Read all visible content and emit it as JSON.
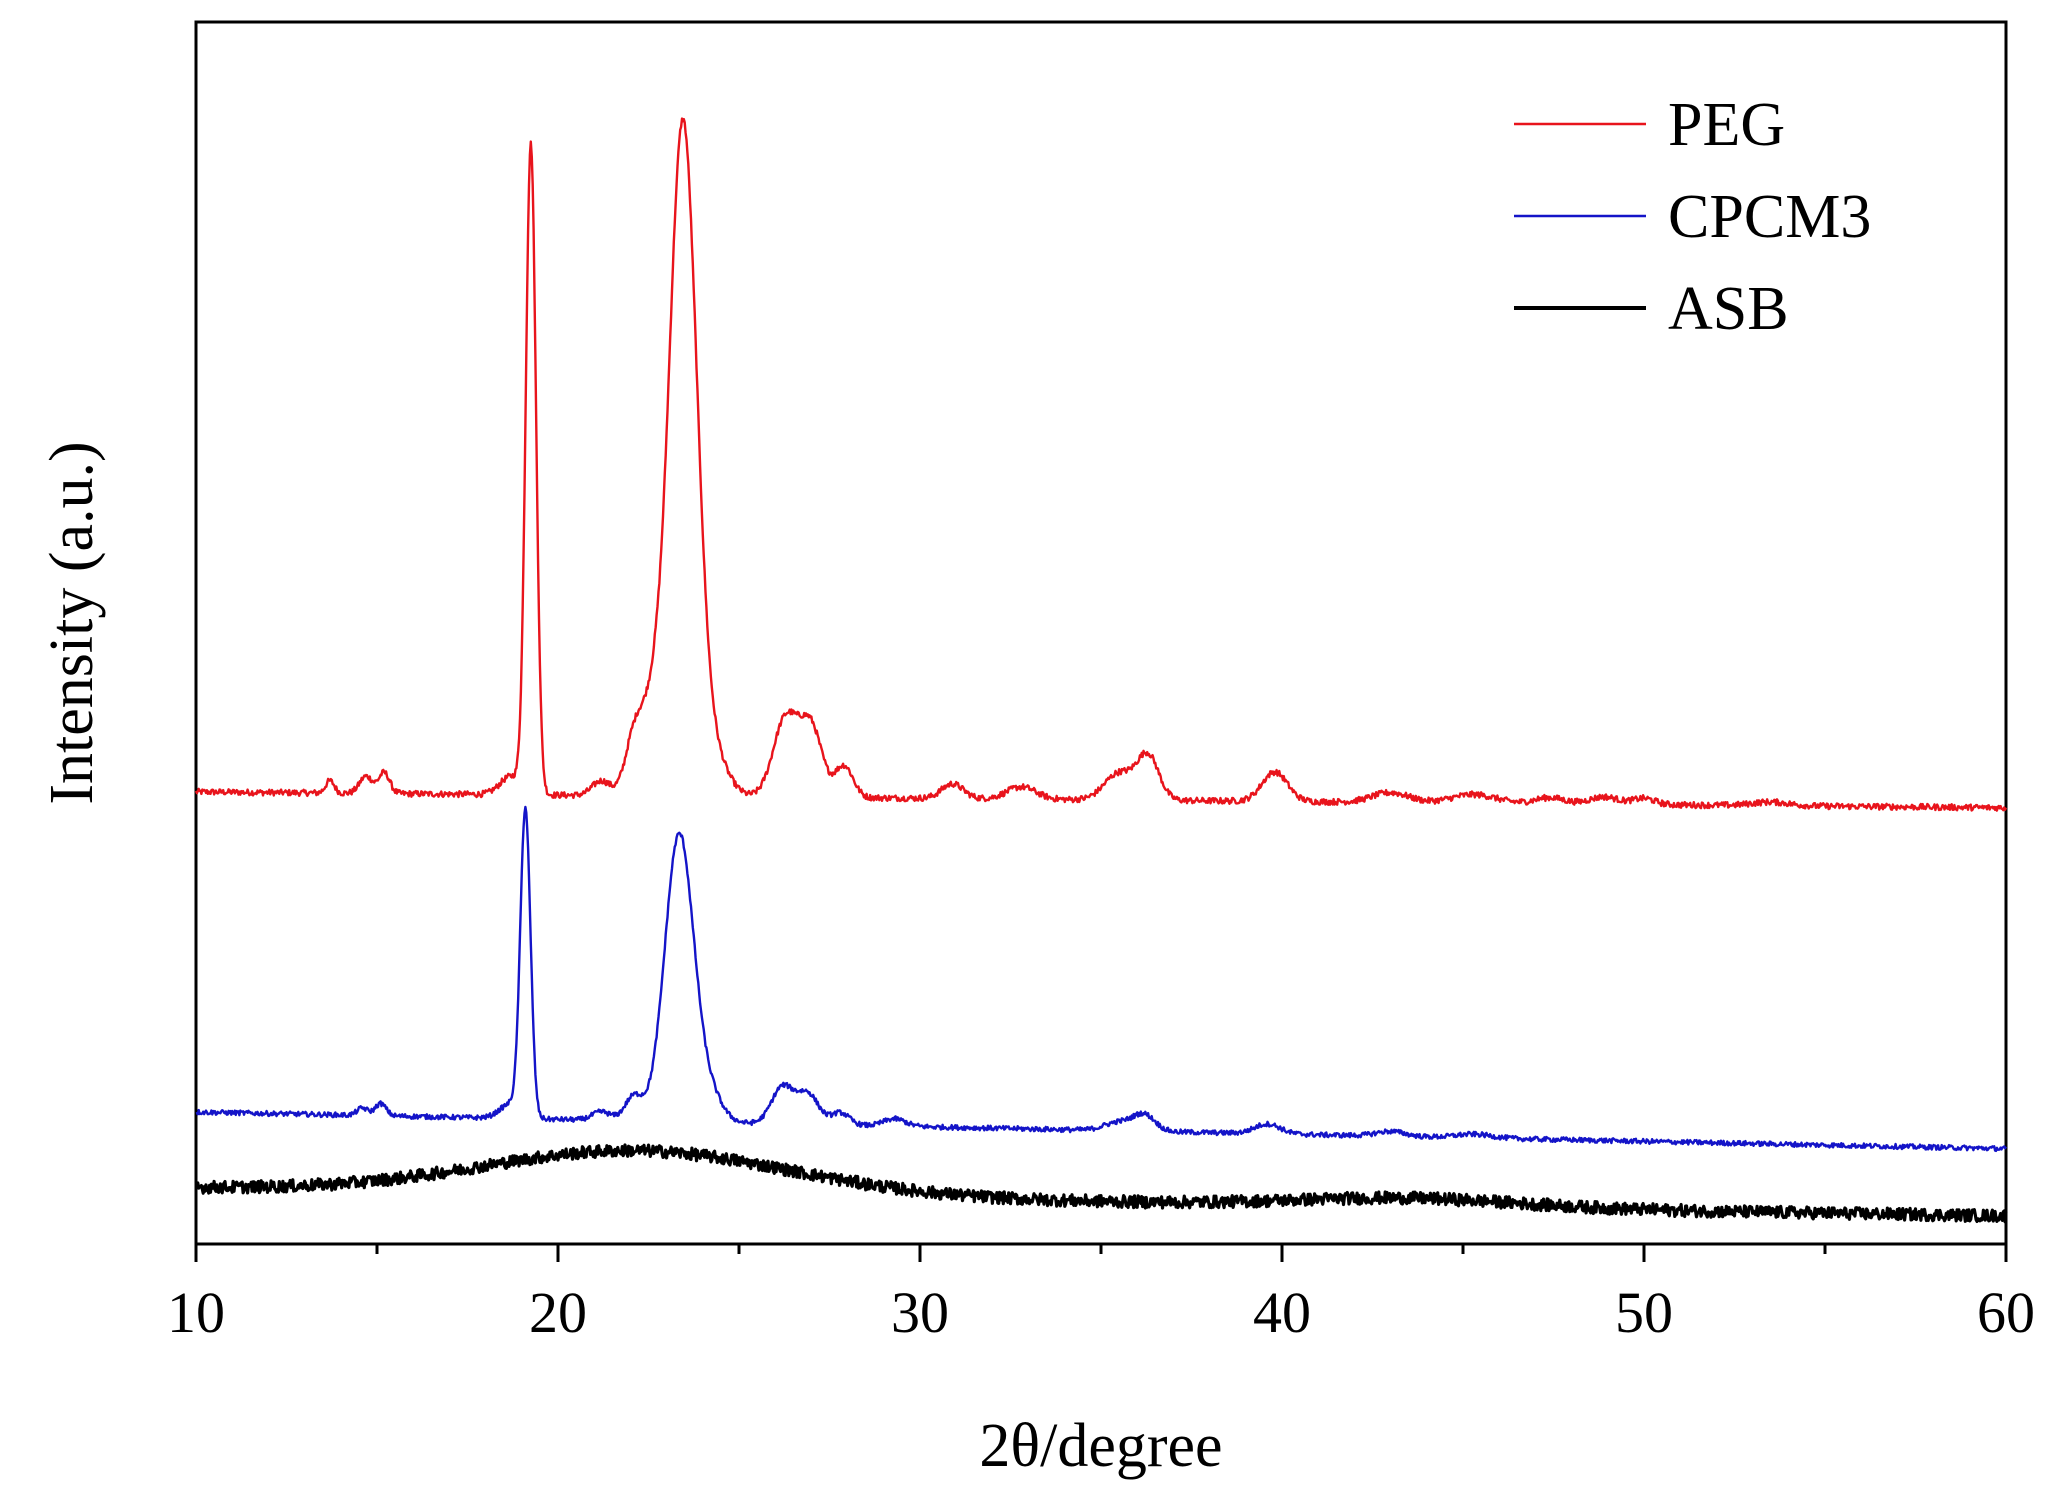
{
  "chart_data": {
    "type": "line",
    "title": "",
    "xlabel": "2θ/degree",
    "ylabel": "Intensity (a.u.)",
    "xlim": [
      10,
      60
    ],
    "ylim": [
      0,
      100
    ],
    "x_ticks": [
      10,
      20,
      30,
      40,
      50,
      60
    ],
    "y_ticks": [],
    "grid": false,
    "legend_position": "top-right",
    "series": [
      {
        "name": "PEG",
        "color": "#e8141c",
        "stroke": "thin",
        "baseline_start": 37.0,
        "baseline_end": 35.7,
        "noise": 0.25,
        "peaks": [
          [
            13.7,
            0.12,
            1.0
          ],
          [
            14.7,
            0.18,
            1.4
          ],
          [
            15.2,
            0.15,
            1.7
          ],
          [
            18.7,
            0.3,
            1.5
          ],
          [
            19.25,
            0.14,
            53.0
          ],
          [
            21.2,
            0.25,
            1.2
          ],
          [
            22.1,
            0.25,
            4.5
          ],
          [
            22.6,
            0.3,
            6.0
          ],
          [
            23.45,
            0.38,
            55.0
          ],
          [
            24.3,
            0.4,
            3.0
          ],
          [
            26.3,
            0.35,
            6.5
          ],
          [
            27.0,
            0.3,
            5.5
          ],
          [
            27.9,
            0.25,
            2.6
          ],
          [
            30.9,
            0.3,
            1.2
          ],
          [
            32.8,
            0.4,
            1.0
          ],
          [
            35.5,
            0.4,
            2.2
          ],
          [
            36.3,
            0.3,
            3.6
          ],
          [
            39.8,
            0.35,
            2.4
          ],
          [
            43.0,
            0.5,
            0.8
          ],
          [
            45.3,
            0.6,
            0.7
          ],
          [
            47.4,
            0.4,
            0.5
          ],
          [
            48.9,
            0.4,
            0.6
          ],
          [
            50.0,
            0.3,
            0.5
          ],
          [
            53.5,
            0.5,
            0.3
          ]
        ]
      },
      {
        "name": "CPCM3",
        "color": "#1414c8",
        "stroke": "thin",
        "baseline_start": 10.8,
        "baseline_end": 7.8,
        "noise": 0.2,
        "peaks": [
          [
            14.6,
            0.15,
            0.6
          ],
          [
            15.1,
            0.15,
            1.0
          ],
          [
            18.7,
            0.3,
            1.2
          ],
          [
            19.1,
            0.14,
            25.0
          ],
          [
            21.2,
            0.25,
            0.7
          ],
          [
            22.1,
            0.25,
            2.0
          ],
          [
            23.35,
            0.4,
            23.5
          ],
          [
            24.2,
            0.35,
            2.0
          ],
          [
            26.2,
            0.3,
            3.0
          ],
          [
            26.9,
            0.3,
            2.5
          ],
          [
            27.8,
            0.25,
            1.0
          ],
          [
            29.3,
            0.3,
            0.6
          ],
          [
            35.5,
            0.4,
            0.7
          ],
          [
            36.2,
            0.3,
            1.3
          ],
          [
            39.6,
            0.35,
            0.8
          ],
          [
            43.0,
            0.4,
            0.4
          ],
          [
            45.3,
            0.5,
            0.3
          ]
        ]
      },
      {
        "name": "ASB",
        "color": "#000000",
        "stroke": "thick",
        "baseline_start": 4.6,
        "baseline_end": 2.3,
        "noise": 0.5,
        "peaks": [
          [
            22.2,
            4.2,
            3.6
          ],
          [
            43.5,
            3.0,
            0.7
          ]
        ]
      }
    ]
  }
}
